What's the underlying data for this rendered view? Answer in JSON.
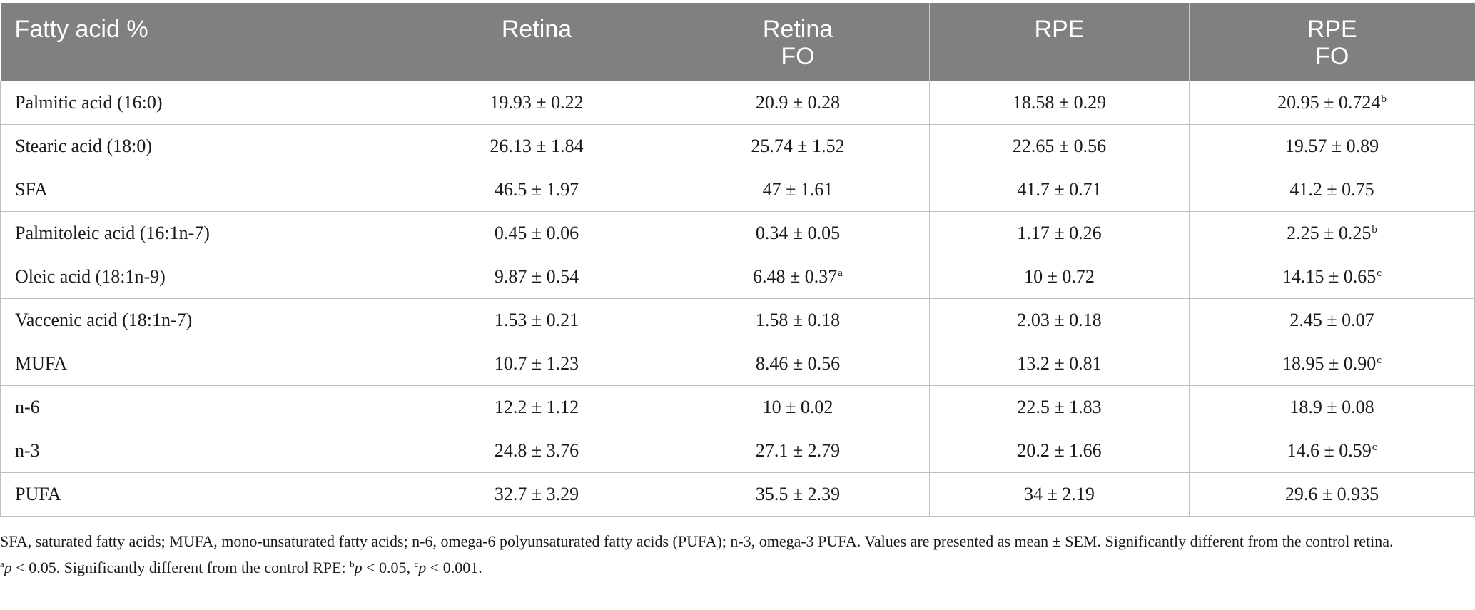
{
  "table": {
    "headers": [
      {
        "line1": "Fatty acid %",
        "line2": ""
      },
      {
        "line1": "Retina",
        "line2": ""
      },
      {
        "line1": "Retina",
        "line2": "FO"
      },
      {
        "line1": "RPE",
        "line2": ""
      },
      {
        "line1": "RPE",
        "line2": "FO"
      }
    ],
    "rows": [
      {
        "label": "Palmitic acid (16:0)",
        "cells": [
          {
            "value": "19.93 ± 0.22",
            "sup": ""
          },
          {
            "value": "20.9 ± 0.28",
            "sup": ""
          },
          {
            "value": "18.58 ± 0.29",
            "sup": ""
          },
          {
            "value": "20.95 ± 0.724",
            "sup": "b"
          }
        ]
      },
      {
        "label": "Stearic acid (18:0)",
        "cells": [
          {
            "value": "26.13 ± 1.84",
            "sup": ""
          },
          {
            "value": "25.74 ± 1.52",
            "sup": ""
          },
          {
            "value": "22.65 ± 0.56",
            "sup": ""
          },
          {
            "value": "19.57 ± 0.89",
            "sup": ""
          }
        ]
      },
      {
        "label": "SFA",
        "cells": [
          {
            "value": "46.5 ± 1.97",
            "sup": ""
          },
          {
            "value": "47 ± 1.61",
            "sup": ""
          },
          {
            "value": "41.7 ± 0.71",
            "sup": ""
          },
          {
            "value": "41.2 ± 0.75",
            "sup": ""
          }
        ]
      },
      {
        "label": "Palmitoleic acid (16:1n-7)",
        "cells": [
          {
            "value": "0.45 ± 0.06",
            "sup": ""
          },
          {
            "value": "0.34 ± 0.05",
            "sup": ""
          },
          {
            "value": "1.17 ± 0.26",
            "sup": ""
          },
          {
            "value": "2.25 ± 0.25",
            "sup": "b"
          }
        ]
      },
      {
        "label": "Oleic acid (18:1n-9)",
        "cells": [
          {
            "value": "9.87 ± 0.54",
            "sup": ""
          },
          {
            "value": "6.48 ± 0.37",
            "sup": "a"
          },
          {
            "value": "10 ± 0.72",
            "sup": ""
          },
          {
            "value": "14.15 ± 0.65",
            "sup": "c"
          }
        ]
      },
      {
        "label": "Vaccenic acid (18:1n-7)",
        "cells": [
          {
            "value": "1.53 ± 0.21",
            "sup": ""
          },
          {
            "value": "1.58 ± 0.18",
            "sup": ""
          },
          {
            "value": "2.03 ± 0.18",
            "sup": ""
          },
          {
            "value": "2.45 ± 0.07",
            "sup": ""
          }
        ]
      },
      {
        "label": "MUFA",
        "cells": [
          {
            "value": "10.7 ± 1.23",
            "sup": ""
          },
          {
            "value": "8.46 ± 0.56",
            "sup": ""
          },
          {
            "value": "13.2 ± 0.81",
            "sup": ""
          },
          {
            "value": "18.95 ± 0.90",
            "sup": "c"
          }
        ]
      },
      {
        "label": "n-6",
        "cells": [
          {
            "value": "12.2 ± 1.12",
            "sup": ""
          },
          {
            "value": "10 ± 0.02",
            "sup": ""
          },
          {
            "value": "22.5 ± 1.83",
            "sup": ""
          },
          {
            "value": "18.9 ± 0.08",
            "sup": ""
          }
        ]
      },
      {
        "label": "n-3",
        "cells": [
          {
            "value": "24.8 ± 3.76",
            "sup": ""
          },
          {
            "value": "27.1 ± 2.79",
            "sup": ""
          },
          {
            "value": "20.2 ± 1.66",
            "sup": ""
          },
          {
            "value": "14.6 ± 0.59",
            "sup": "c"
          }
        ]
      },
      {
        "label": "PUFA",
        "cells": [
          {
            "value": "32.7 ± 3.29",
            "sup": ""
          },
          {
            "value": "35.5 ± 2.39",
            "sup": ""
          },
          {
            "value": "34 ± 2.19",
            "sup": ""
          },
          {
            "value": "29.6 ± 0.935",
            "sup": ""
          }
        ]
      }
    ]
  },
  "footnotes": {
    "line1": "SFA, saturated fatty acids; MUFA, mono-unsaturated fatty acids; n-6, omega-6 polyunsaturated fatty acids (PUFA); n-3, omega-3 PUFA. Values are presented as mean ± SEM. Significantly different from the control retina.",
    "line2": {
      "sup_a": "a",
      "p_a": "p",
      "text_a": " < 0.05. Significantly different from the control RPE: ",
      "sup_b": "b",
      "p_b": "p",
      "text_b": " < 0.05, ",
      "sup_c": "c",
      "p_c": "p",
      "text_c": " < 0.001."
    }
  },
  "colors": {
    "header_bg": "#808080",
    "header_text": "#ffffff",
    "grid": "#bfbfbf"
  }
}
